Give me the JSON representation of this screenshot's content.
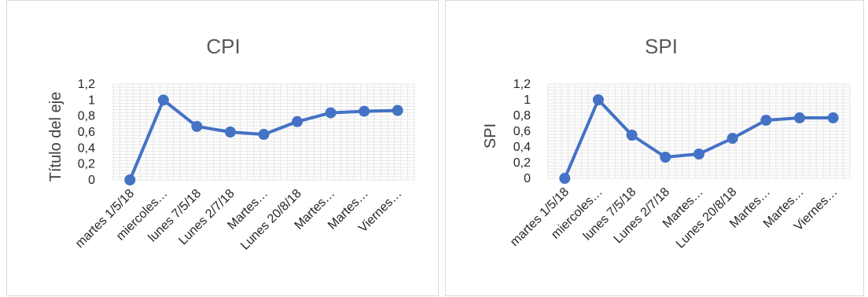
{
  "chart_data": [
    {
      "type": "line",
      "title": "CPI",
      "xlabel": "",
      "ylabel": "Título del eje",
      "ylim": [
        0,
        1.2
      ],
      "yticks": [
        "0",
        "0,2",
        "0,4",
        "0,6",
        "0,8",
        "1",
        "1,2"
      ],
      "grid": true,
      "legend": "none",
      "color": "#4472c4",
      "categories": [
        "martes 1/5/18",
        "miercoles…",
        "lunes 7/5/18",
        "Lunes 2/7/18",
        "Martes…",
        "Lunes 20/8/18",
        "Martes…",
        "Martes…",
        "Viernes…"
      ],
      "series": [
        {
          "values": [
            0.0,
            1.0,
            0.67,
            0.6,
            0.57,
            0.73,
            0.84,
            0.86,
            0.87
          ]
        }
      ]
    },
    {
      "type": "line",
      "title": "SPI",
      "xlabel": "",
      "ylabel": "SPI",
      "ylim": [
        0,
        1.2
      ],
      "yticks": [
        "0",
        "0,2",
        "0,4",
        "0,6",
        "0,8",
        "1",
        "1,2"
      ],
      "grid": true,
      "legend": "none",
      "color": "#4472c4",
      "categories": [
        "martes 1/5/18",
        "miercoles…",
        "lunes 7/5/18",
        "Lunes 2/7/18",
        "Martes…",
        "Lunes 20/8/18",
        "Martes…",
        "Martes…",
        "Viernes…"
      ],
      "series": [
        {
          "values": [
            0.0,
            1.0,
            0.55,
            0.27,
            0.31,
            0.51,
            0.74,
            0.77,
            0.77
          ]
        }
      ]
    }
  ]
}
